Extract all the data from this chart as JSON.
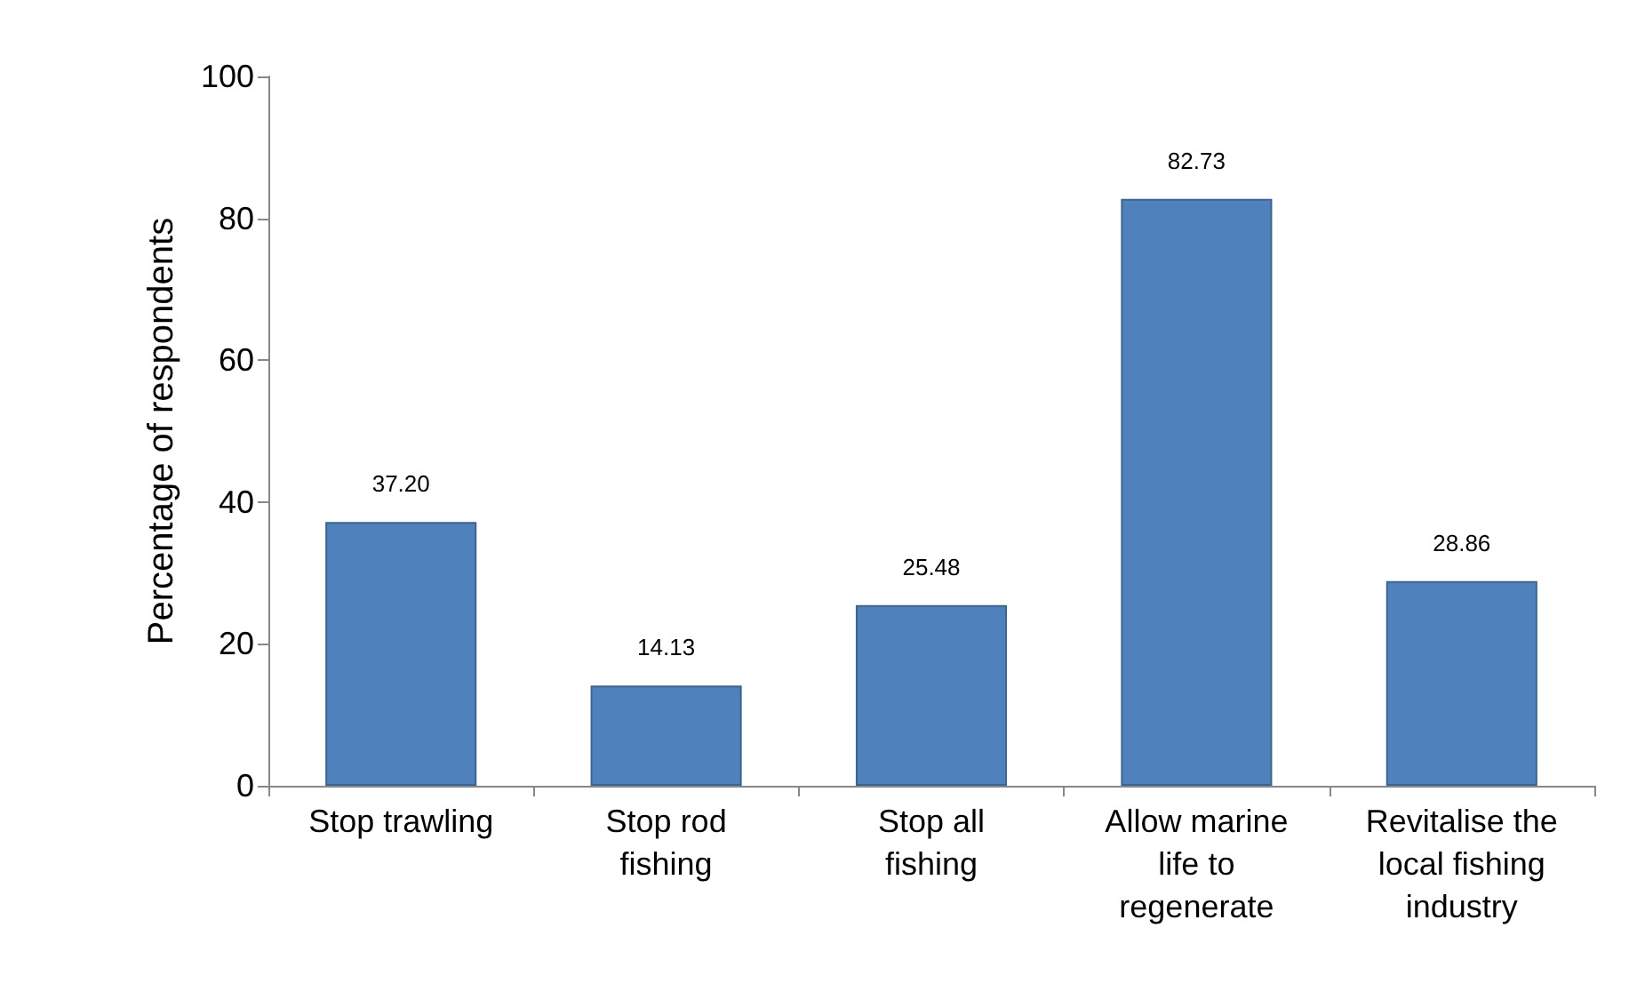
{
  "chart_data": {
    "type": "bar",
    "ylabel": "Percentage of respondents",
    "categories": [
      "Stop trawling",
      "Stop rod fishing",
      "Stop all fishing",
      "Allow marine life to regenerate",
      "Revitalise the local fishing industry"
    ],
    "values": [
      37.2,
      14.13,
      25.48,
      82.73,
      28.86
    ],
    "value_labels": [
      "37.20",
      "14.13",
      "25.48",
      "82.73",
      "28.86"
    ],
    "color": "#4f81bd",
    "ylim": [
      0,
      100
    ],
    "yticks": [
      0,
      20,
      40,
      60,
      80,
      100
    ],
    "grid": false
  }
}
